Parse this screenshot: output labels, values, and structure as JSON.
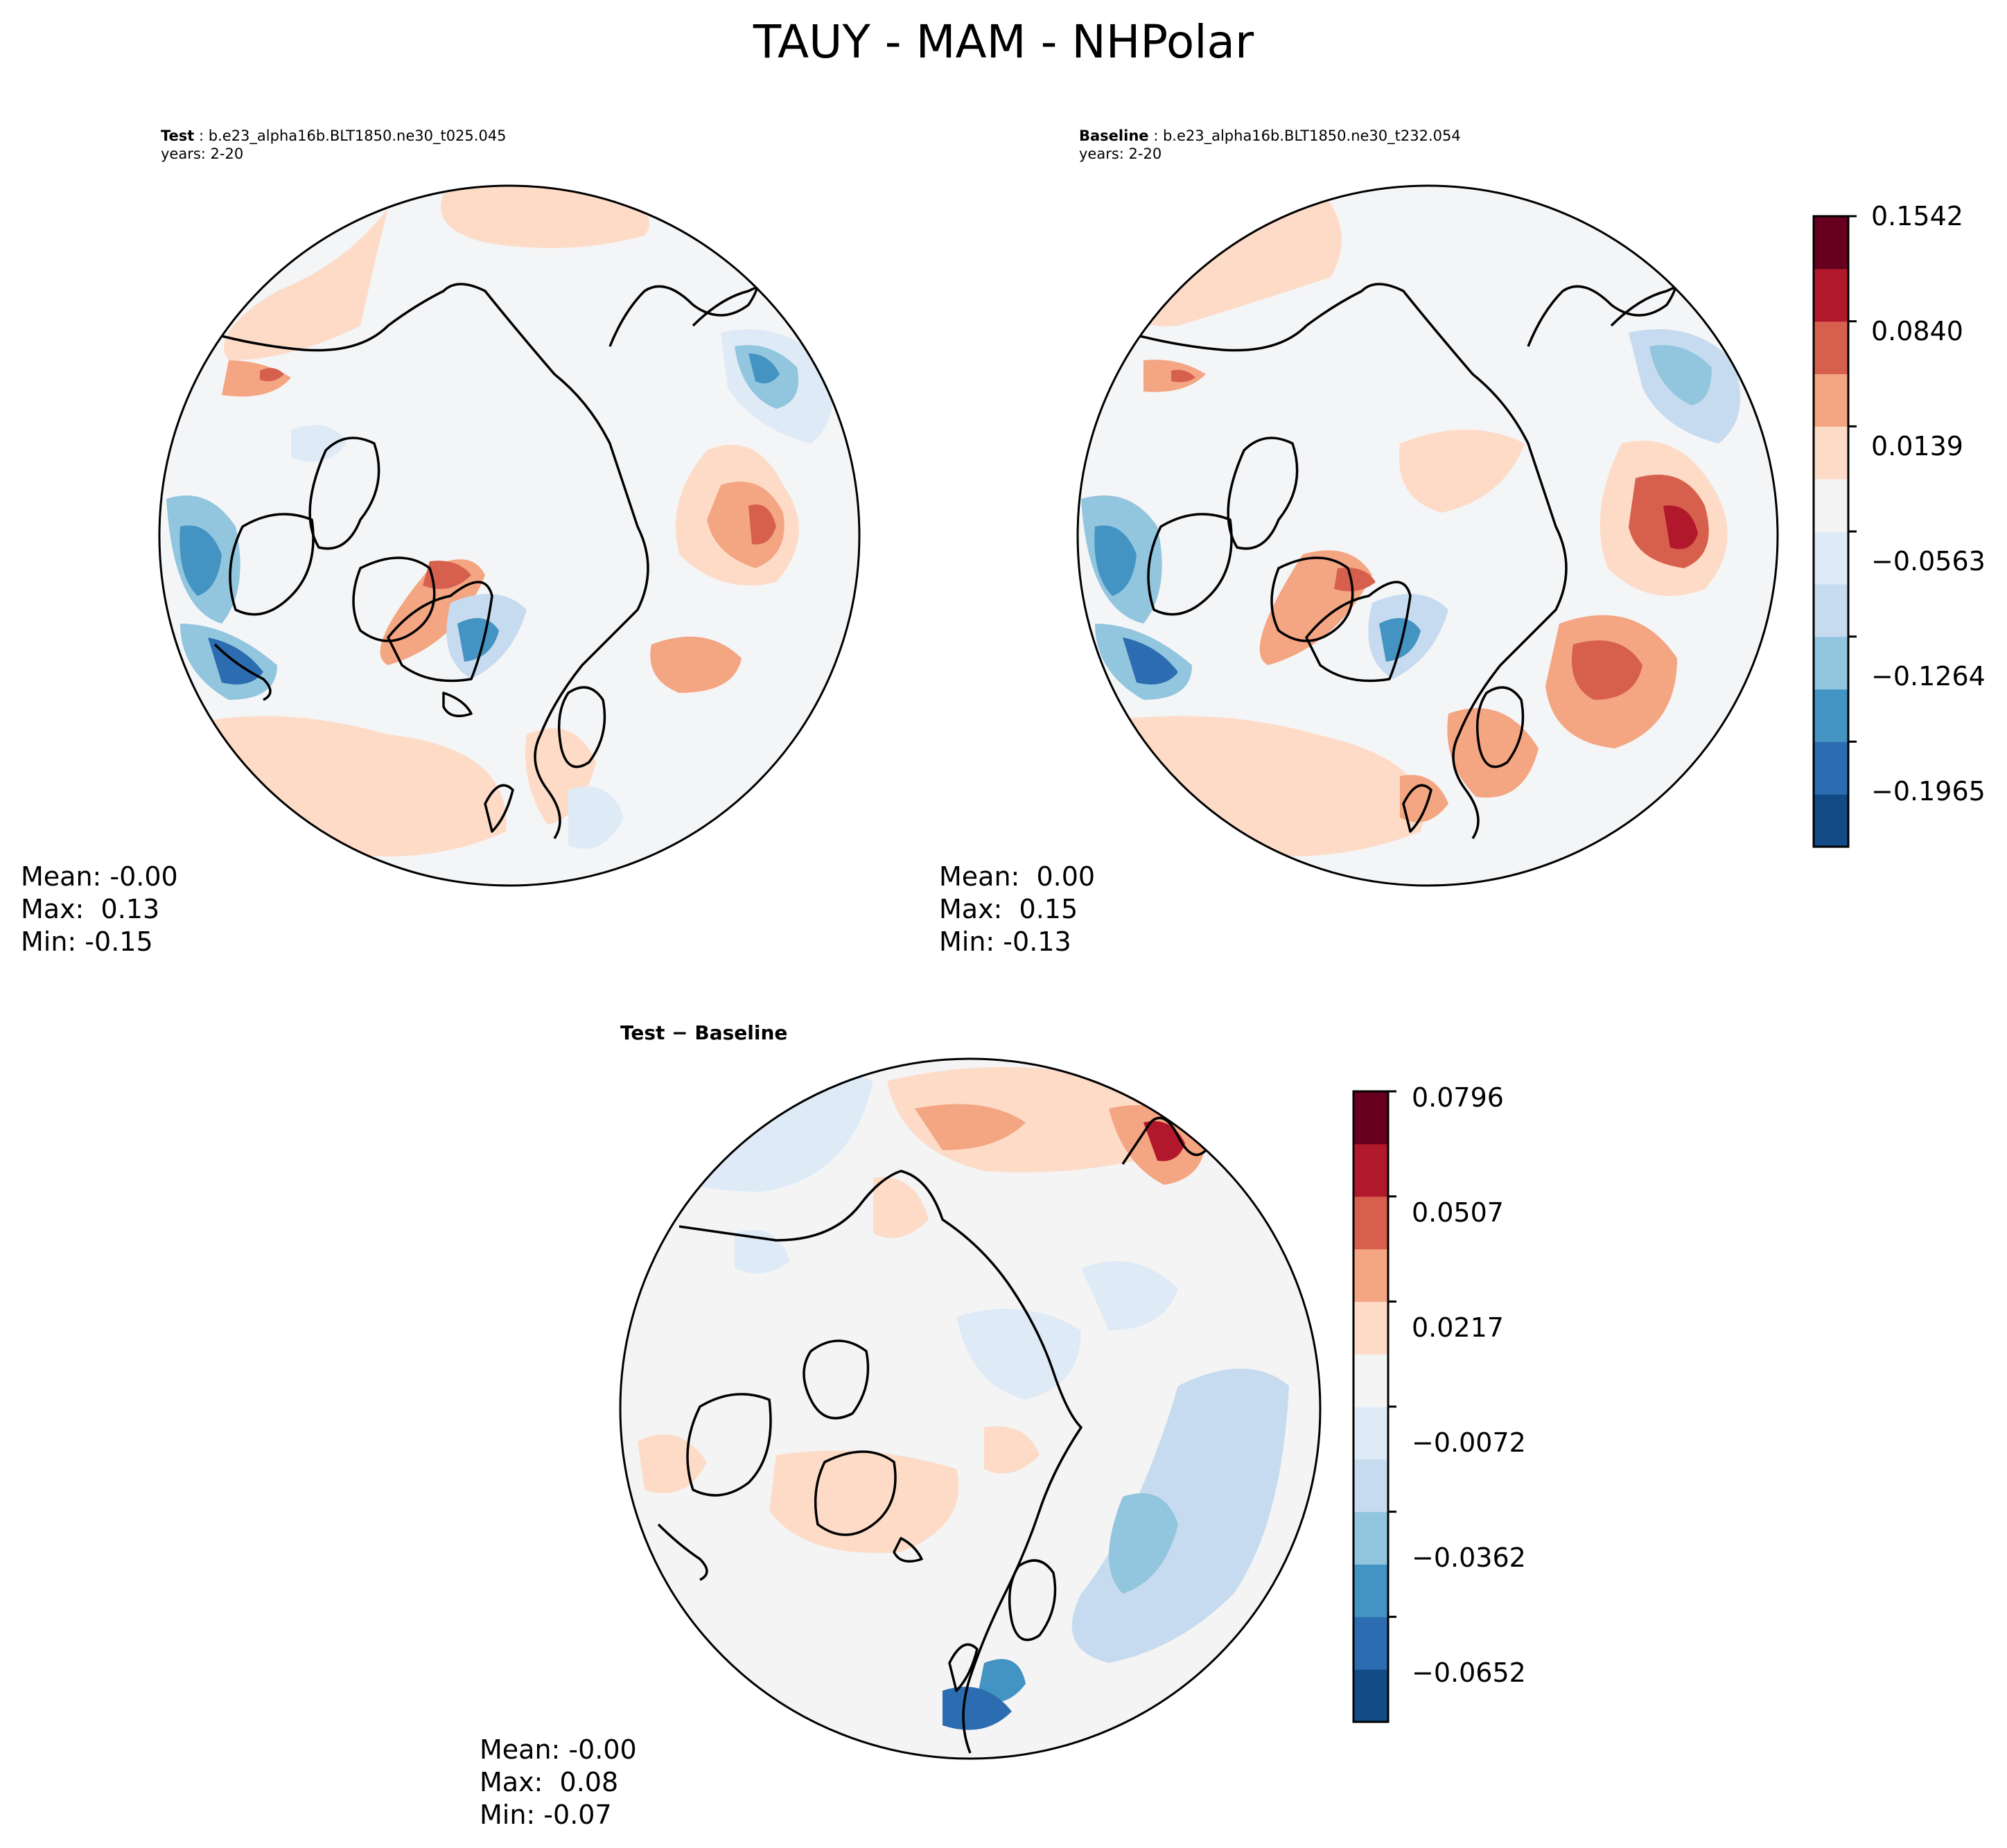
{
  "figure": {
    "title": "TAUY - MAM - NHPolar"
  },
  "panels": {
    "test": {
      "label": "Test",
      "case": "b.e23_alpha16b.BLT1850.ne30_t025.045",
      "years": "years: 2-20",
      "stats": {
        "mean": "Mean: -0.00",
        "max": "Max:  0.13",
        "min": "Min: -0.15"
      }
    },
    "baseline": {
      "label": "Baseline",
      "case": "b.e23_alpha16b.BLT1850.ne30_t232.054",
      "years": "years: 2-20",
      "stats": {
        "mean": "Mean:  0.00",
        "max": "Max:  0.15",
        "min": "Min: -0.13"
      }
    },
    "diff": {
      "title": "Test − Baseline",
      "stats": {
        "mean": "Mean: -0.00",
        "max": "Max:  0.08",
        "min": "Min: -0.07"
      }
    }
  },
  "colorbars": {
    "main": {
      "ticks": [
        "0.1542",
        "0.0840",
        "0.0139",
        "−0.0563",
        "−0.1264",
        "−0.1965"
      ],
      "colors": [
        "#134b86",
        "#2b6db0",
        "#4393c3",
        "#92c5de",
        "#c6dbef",
        "#deebf7",
        "#f4f4f4",
        "#fddbc7",
        "#f4a582",
        "#d6604d",
        "#b2182b",
        "#67001f"
      ]
    },
    "diff": {
      "ticks": [
        "0.0796",
        "0.0507",
        "0.0217",
        "−0.0072",
        "−0.0362",
        "−0.0652"
      ],
      "colors": [
        "#134b86",
        "#2b6db0",
        "#4393c3",
        "#92c5de",
        "#c6dbef",
        "#deebf7",
        "#f4f4f4",
        "#fddbc7",
        "#f4a582",
        "#d6604d",
        "#b2182b",
        "#67001f"
      ]
    }
  },
  "palette": {
    "ocean_neutral": "#f4f5f7",
    "coastline": "#000000"
  }
}
